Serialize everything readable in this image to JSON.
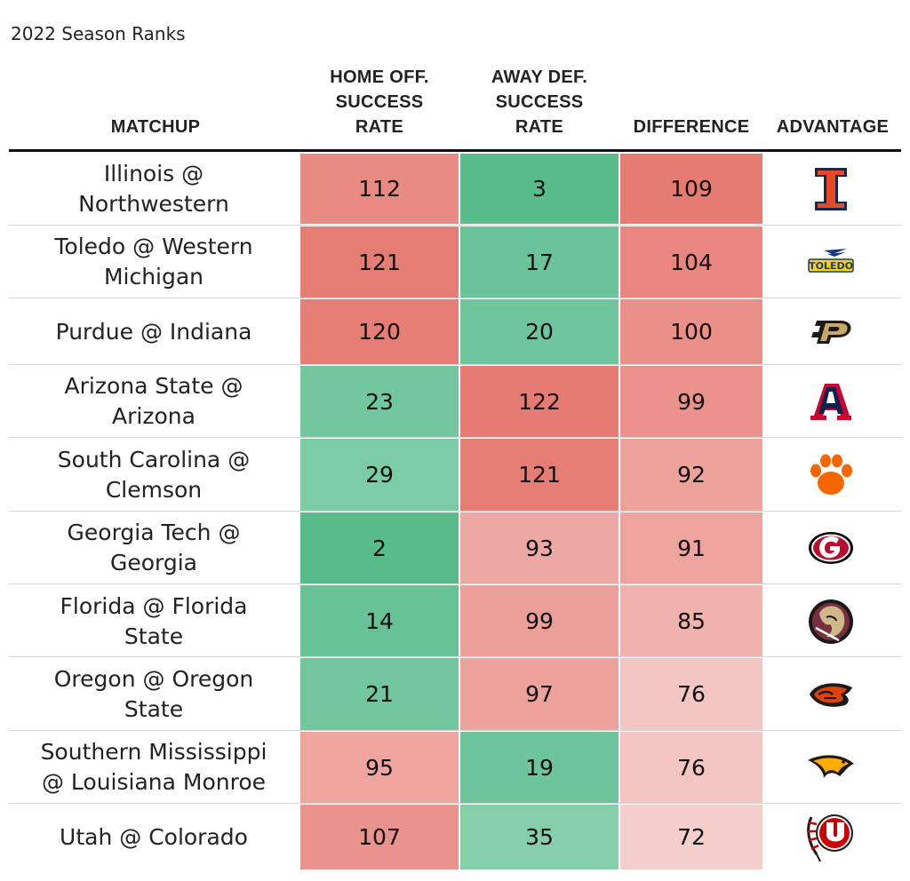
{
  "subtitle": "2022 Season Ranks",
  "chart_data": {
    "type": "table",
    "columns": [
      "MATCHUP",
      "HOME OFF. SUCCESS RATE",
      "AWAY DEF. SUCCESS RATE",
      "DIFFERENCE",
      "ADVANTAGE"
    ],
    "header_lines": {
      "matchup": [
        "MATCHUP"
      ],
      "home_off": [
        "HOME OFF.",
        "SUCCESS",
        "RATE"
      ],
      "away_def": [
        "AWAY DEF.",
        "SUCCESS",
        "RATE"
      ],
      "difference": [
        "DIFFERENCE"
      ],
      "advantage": [
        "ADVANTAGE"
      ]
    },
    "rows": [
      {
        "matchup": [
          "Illinois @",
          "Northwestern"
        ],
        "home_off": 112,
        "away_def": 3,
        "difference": 109,
        "advantage": "illinois-logo-icon"
      },
      {
        "matchup": [
          "Toledo @ Western",
          "Michigan"
        ],
        "home_off": 121,
        "away_def": 17,
        "difference": 104,
        "advantage": "toledo-logo-icon"
      },
      {
        "matchup": [
          "Purdue @ Indiana"
        ],
        "home_off": 120,
        "away_def": 20,
        "difference": 100,
        "advantage": "purdue-logo-icon"
      },
      {
        "matchup": [
          "Arizona State @",
          "Arizona"
        ],
        "home_off": 23,
        "away_def": 122,
        "difference": 99,
        "advantage": "arizona-logo-icon"
      },
      {
        "matchup": [
          "South Carolina @",
          "Clemson"
        ],
        "home_off": 29,
        "away_def": 121,
        "difference": 92,
        "advantage": "clemson-logo-icon"
      },
      {
        "matchup": [
          "Georgia Tech @",
          "Georgia"
        ],
        "home_off": 2,
        "away_def": 93,
        "difference": 91,
        "advantage": "georgia-logo-icon"
      },
      {
        "matchup": [
          "Florida @ Florida",
          "State"
        ],
        "home_off": 14,
        "away_def": 99,
        "difference": 85,
        "advantage": "florida-state-logo-icon"
      },
      {
        "matchup": [
          "Oregon @ Oregon",
          "State"
        ],
        "home_off": 21,
        "away_def": 97,
        "difference": 76,
        "advantage": "oregon-state-logo-icon"
      },
      {
        "matchup": [
          "Southern Mississippi",
          "@ Louisiana Monroe"
        ],
        "home_off": 95,
        "away_def": 19,
        "difference": 76,
        "advantage": "southern-miss-logo-icon"
      },
      {
        "matchup": [
          "Utah @ Colorado"
        ],
        "home_off": 107,
        "away_def": 35,
        "difference": 72,
        "advantage": "utah-logo-icon"
      }
    ]
  },
  "colors": {
    "red_strong": "#e67b73",
    "red_light": "#f6d4d1",
    "green_strong": "#57bb8a",
    "green_light": "#ace0c8"
  }
}
